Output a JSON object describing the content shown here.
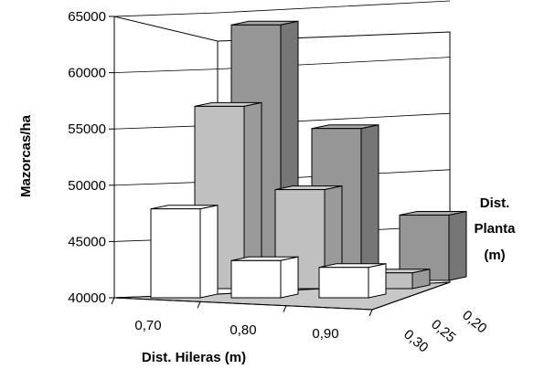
{
  "chart_data": {
    "type": "bar",
    "title": "",
    "ylabel": "Mazorcas/ha",
    "xlabel": "Dist. Hileras (m)",
    "zlabel_lines": [
      "Dist.",
      "Planta",
      "(m)"
    ],
    "ylim": [
      40000,
      65000
    ],
    "yticks": [
      "40000",
      "45000",
      "50000",
      "55000",
      "60000",
      "65000"
    ],
    "categories": [
      "0,70",
      "0,80",
      "0,90"
    ],
    "series": [
      {
        "name": "0,30",
        "values": [
          47900,
          43300,
          42700
        ]
      },
      {
        "name": "0,25",
        "values": [
          56200,
          48800,
          41400
        ]
      },
      {
        "name": "0,20",
        "values": [
          62700,
          53500,
          45800
        ]
      }
    ],
    "colors": {
      "0,30": "#ffffff",
      "0,25": "#c0c0c0",
      "0,20": "#969696"
    },
    "grid": true,
    "legend": "none"
  }
}
